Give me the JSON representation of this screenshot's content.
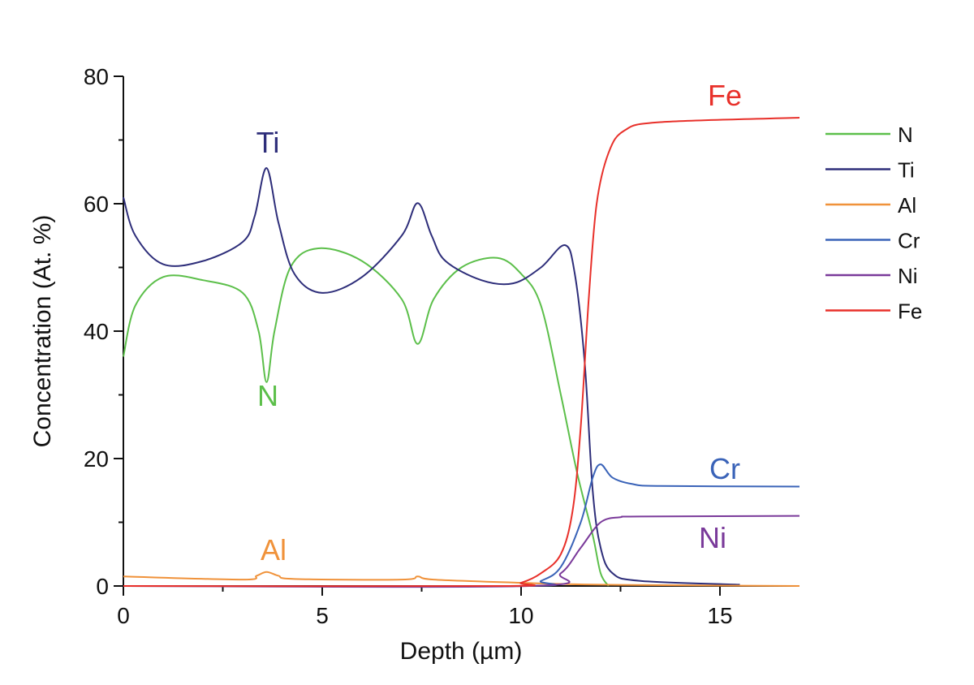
{
  "chart_data": {
    "type": "line",
    "title": "",
    "xlabel": "Depth (µm)",
    "ylabel": "Concentration (At. %)",
    "xlim": [
      0,
      17
    ],
    "ylim": [
      0,
      80
    ],
    "xticks": [
      "0",
      "5",
      "10",
      "15"
    ],
    "yticks": [
      "0",
      "20",
      "40",
      "60",
      "80"
    ],
    "grid": false,
    "legend_placement": "right",
    "series": [
      {
        "name": "N",
        "color": "#5cbf4a",
        "x": [
          0,
          0.3,
          1,
          2,
          3,
          3.4,
          3.6,
          3.8,
          4.2,
          4.9,
          6,
          7,
          7.4,
          7.8,
          8.5,
          9.4,
          10,
          10.5,
          11,
          11.4,
          11.8,
          12,
          12.2
        ],
        "y": [
          36,
          44,
          48.5,
          48,
          46,
          40,
          32,
          40,
          50,
          53,
          51,
          45,
          38,
          45,
          50,
          51.5,
          49,
          44,
          30,
          18,
          8,
          2,
          0
        ]
      },
      {
        "name": "Ti",
        "color": "#2e2e7a",
        "x": [
          0,
          0.3,
          1,
          2,
          3,
          3.3,
          3.6,
          3.9,
          4.3,
          5,
          6,
          7,
          7.4,
          7.75,
          8.1,
          9,
          9.8,
          10.5,
          11.1,
          11.35,
          11.6,
          11.8,
          12,
          12.3,
          13,
          15.5
        ],
        "y": [
          61,
          55,
          50.5,
          51,
          54,
          58,
          65.6,
          57,
          49,
          46,
          48.5,
          55,
          60.1,
          55,
          51,
          48,
          47.5,
          50,
          53.5,
          49,
          35,
          15,
          6,
          2,
          0.8,
          0.2
        ]
      },
      {
        "name": "Al",
        "color": "#f0923a",
        "x": [
          0,
          3,
          3.35,
          3.6,
          3.9,
          4.3,
          7,
          7.4,
          7.8,
          10,
          12,
          17
        ],
        "y": [
          1.5,
          1.0,
          1.6,
          2.2,
          1.6,
          1.1,
          1.0,
          1.5,
          1.0,
          0.5,
          0.2,
          0
        ]
      },
      {
        "name": "Cr",
        "color": "#3a63b8",
        "x": [
          0,
          10,
          10.5,
          11,
          11.5,
          11.8,
          12,
          12.3,
          12.8,
          13.5,
          17
        ],
        "y": [
          0,
          0,
          0.8,
          3,
          10,
          17,
          19.1,
          17,
          16,
          15.7,
          15.6
        ]
      },
      {
        "name": "Ni",
        "color": "#7a3a9a",
        "x": [
          0,
          10.2,
          11,
          11.5,
          12,
          12.5,
          13,
          17
        ],
        "y": [
          0,
          0,
          2,
          6,
          10,
          10.8,
          10.9,
          11
        ]
      },
      {
        "name": "Fe",
        "color": "#e8302a",
        "x": [
          0,
          9.5,
          10,
          10.5,
          11,
          11.3,
          11.5,
          11.7,
          11.9,
          12.2,
          12.6,
          13.5,
          17
        ],
        "y": [
          0,
          0,
          0.5,
          2,
          5,
          12,
          25,
          45,
          60,
          68,
          71.5,
          72.8,
          73.5
        ]
      }
    ],
    "annotations": [
      {
        "text": "Ti",
        "color": "#2e2e7a"
      },
      {
        "text": "N",
        "color": "#5cbf4a"
      },
      {
        "text": "Al",
        "color": "#f0923a"
      },
      {
        "text": "Fe",
        "color": "#e8302a"
      },
      {
        "text": "Cr",
        "color": "#3a63b8"
      },
      {
        "text": "Ni",
        "color": "#7a3a9a"
      }
    ]
  }
}
